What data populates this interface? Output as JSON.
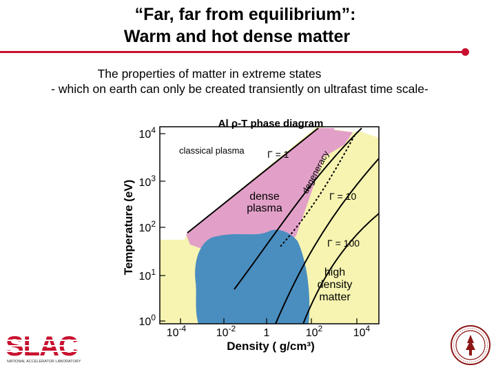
{
  "slide": {
    "title_line1": "“Far, far from equilibrium”:",
    "title_line2": "Warm and hot dense matter",
    "subtitle_line1": "The properties of matter in extreme states",
    "subtitle_line2": "- which on earth can only be created transiently on ultrafast time scale-"
  },
  "diagram": {
    "title": "Al ρ-T phase diagram",
    "ylabel": "Temperature (eV)",
    "xlabel": "Density ( g/cm³)",
    "y_ticks": [
      {
        "base": "10",
        "exp": "4"
      },
      {
        "base": "10",
        "exp": "3"
      },
      {
        "base": "10",
        "exp": "2"
      },
      {
        "base": "10",
        "exp": "1"
      },
      {
        "base": "10",
        "exp": "0"
      }
    ],
    "x_ticks": [
      {
        "base": "10",
        "exp": "-4"
      },
      {
        "base": "10",
        "exp": "-2"
      },
      {
        "base": "1",
        "exp": ""
      },
      {
        "base": "10",
        "exp": "2"
      },
      {
        "base": "10",
        "exp": "4"
      }
    ],
    "regions": {
      "classical_plasma": "classical plasma",
      "dense_plasma_1": "dense",
      "dense_plasma_2": "plasma",
      "high_density_1": "high",
      "high_density_2": "density",
      "high_density_3": "matter"
    },
    "gamma_labels": {
      "g1": "Γ = 1",
      "g10": "Γ = 10",
      "g100": "Γ = 100"
    },
    "degeneracy_label": "degeneracy",
    "colors": {
      "pink": "#e2a0c8",
      "yellow": "#f6f4b0",
      "blue": "#4a8ec0"
    }
  },
  "logos": {
    "slac": "SLAC",
    "slac_tagline": "NATIONAL ACCELERATOR LABORATORY"
  }
}
